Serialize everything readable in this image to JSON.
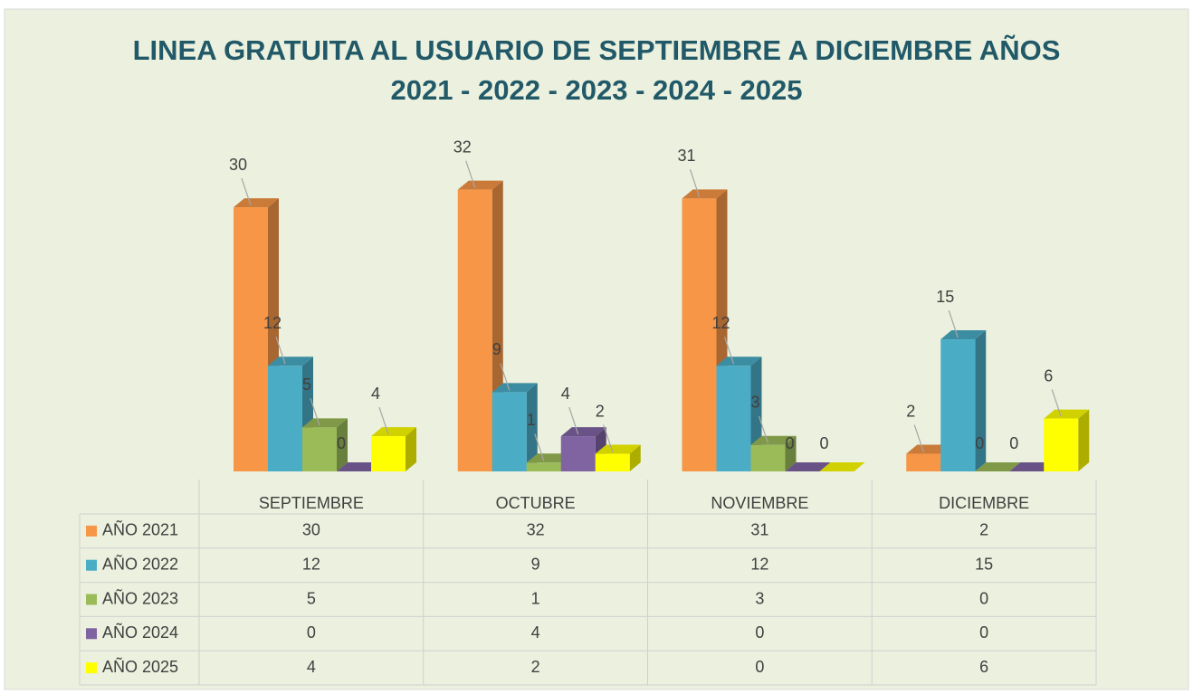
{
  "chart_data": {
    "type": "bar",
    "title": [
      "LINEA GRATUITA AL USUARIO DE SEPTIEMBRE A DICIEMBRE AÑOS",
      "2021 - 2022 - 2023 - 2024 - 2025"
    ],
    "categories": [
      "SEPTIEMBRE",
      "OCTUBRE",
      "NOVIEMBRE",
      "DICIEMBRE"
    ],
    "series": [
      {
        "name": "AÑO 2021",
        "color": "#f79646",
        "values": [
          30,
          32,
          31,
          2
        ]
      },
      {
        "name": "AÑO 2022",
        "color": "#4bacc6",
        "values": [
          12,
          9,
          12,
          15
        ]
      },
      {
        "name": "AÑO 2023",
        "color": "#9bbb59",
        "values": [
          5,
          1,
          3,
          0
        ]
      },
      {
        "name": "AÑO 2024",
        "color": "#8064a2",
        "values": [
          0,
          4,
          0,
          0
        ]
      },
      {
        "name": "AÑO 2025",
        "color": "#ffff00",
        "values": [
          4,
          2,
          0,
          6
        ]
      }
    ]
  }
}
